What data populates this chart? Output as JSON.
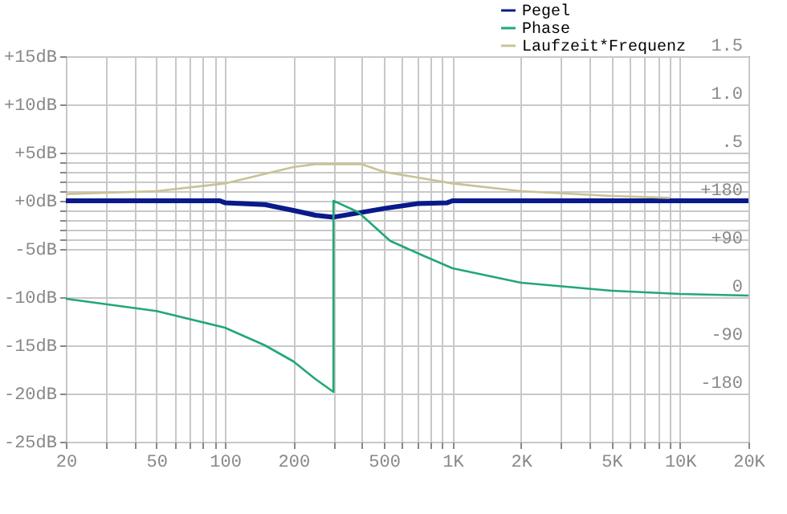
{
  "chart_data": {
    "type": "line",
    "legend": "top right",
    "grid": true,
    "log": "x",
    "xlim": [
      20,
      20000
    ],
    "xticks": [
      20,
      {
        "value": 30,
        "label": null
      },
      {
        "value": 40,
        "label": null
      },
      50,
      {
        "value": 60,
        "label": null
      },
      {
        "value": 70,
        "label": null
      },
      {
        "value": 80,
        "label": null
      },
      {
        "value": 90,
        "label": null
      },
      100,
      200,
      {
        "value": 300,
        "label": null
      },
      {
        "value": 400,
        "label": null
      },
      500,
      {
        "value": 600,
        "label": null
      },
      {
        "value": 700,
        "label": null
      },
      {
        "value": 800,
        "label": null
      },
      {
        "value": 900,
        "label": null
      },
      {
        "value": 1000,
        "label": "1K"
      },
      {
        "value": 2000,
        "label": "2K"
      },
      {
        "value": 3000,
        "label": null
      },
      {
        "value": 4000,
        "label": null
      },
      {
        "value": 5000,
        "label": "5K"
      },
      {
        "value": 6000,
        "label": null
      },
      {
        "value": 7000,
        "label": null
      },
      {
        "value": 8000,
        "label": null
      },
      {
        "value": 9000,
        "label": null
      },
      {
        "value": 10000,
        "label": "10K"
      },
      {
        "value": 20000,
        "label": "20K"
      }
    ],
    "ylim": [
      -25,
      15
    ],
    "yticks": [
      {
        "value": 15,
        "label": "+15dB"
      },
      {
        "value": 10,
        "label": "+10dB"
      },
      {
        "value": 5,
        "label": "+5dB"
      },
      {
        "value": 4,
        "label": null
      },
      {
        "value": 3,
        "label": null
      },
      {
        "value": 2,
        "label": null
      },
      {
        "value": 1,
        "label": null
      },
      {
        "value": 0,
        "label": "+0dB"
      },
      {
        "value": -1,
        "label": null
      },
      {
        "value": -2,
        "label": null
      },
      {
        "value": -3,
        "label": null
      },
      {
        "value": -4,
        "label": null
      },
      {
        "value": -5,
        "label": "-5dB"
      },
      {
        "value": -10,
        "label": "-10dB"
      },
      {
        "value": -15,
        "label": "-15dB"
      },
      {
        "value": -20,
        "label": "-20dB"
      },
      {
        "value": -25,
        "label": "-25dB"
      }
    ],
    "y2lim": [
      -270,
      450
    ],
    "y2ticks": [
      {
        "value": 180,
        "label": "+180"
      },
      {
        "value": 90,
        "label": "+90"
      },
      0,
      -90,
      -180
    ],
    "y3lim": [
      -2.5,
      1.5
    ],
    "y3ticks": [
      1.5,
      {
        "value": 1.0,
        "label": "1.0"
      },
      {
        "value": 0.5,
        "label": ".5"
      }
    ],
    "series": [
      {
        "name": "Pegel",
        "color": "#0a1a8c",
        "x": [
          20,
          95,
          100,
          150,
          200,
          250,
          300,
          400,
          500,
          700,
          950,
          1000,
          20000
        ],
        "values": [
          0,
          0,
          -0.2,
          -0.4,
          -1.0,
          -1.5,
          -1.7,
          -1.2,
          -0.8,
          -0.3,
          -0.2,
          0,
          0
        ]
      },
      {
        "name": "Phase",
        "color": "#22a874",
        "axis": "y2",
        "x": [
          20,
          50,
          100,
          150,
          200,
          250,
          300,
          300,
          385,
          533,
          740,
          1000,
          2000,
          5000,
          10000,
          20000
        ],
        "values": [
          -3,
          -26,
          -57,
          -90,
          -120,
          -153,
          -177,
          180,
          159,
          105,
          78,
          54,
          27,
          12,
          6,
          3
        ]
      },
      {
        "name": "Laufzeit*Frequenz",
        "color": "#c8c296",
        "axis": "y3",
        "x": [
          20,
          50,
          100,
          200,
          250,
          400,
          500,
          1000,
          2000,
          5000,
          9000
        ],
        "values": [
          0.07,
          0.1,
          0.18,
          0.35,
          0.38,
          0.38,
          0.3,
          0.18,
          0.1,
          0.05,
          0.03
        ]
      }
    ]
  }
}
